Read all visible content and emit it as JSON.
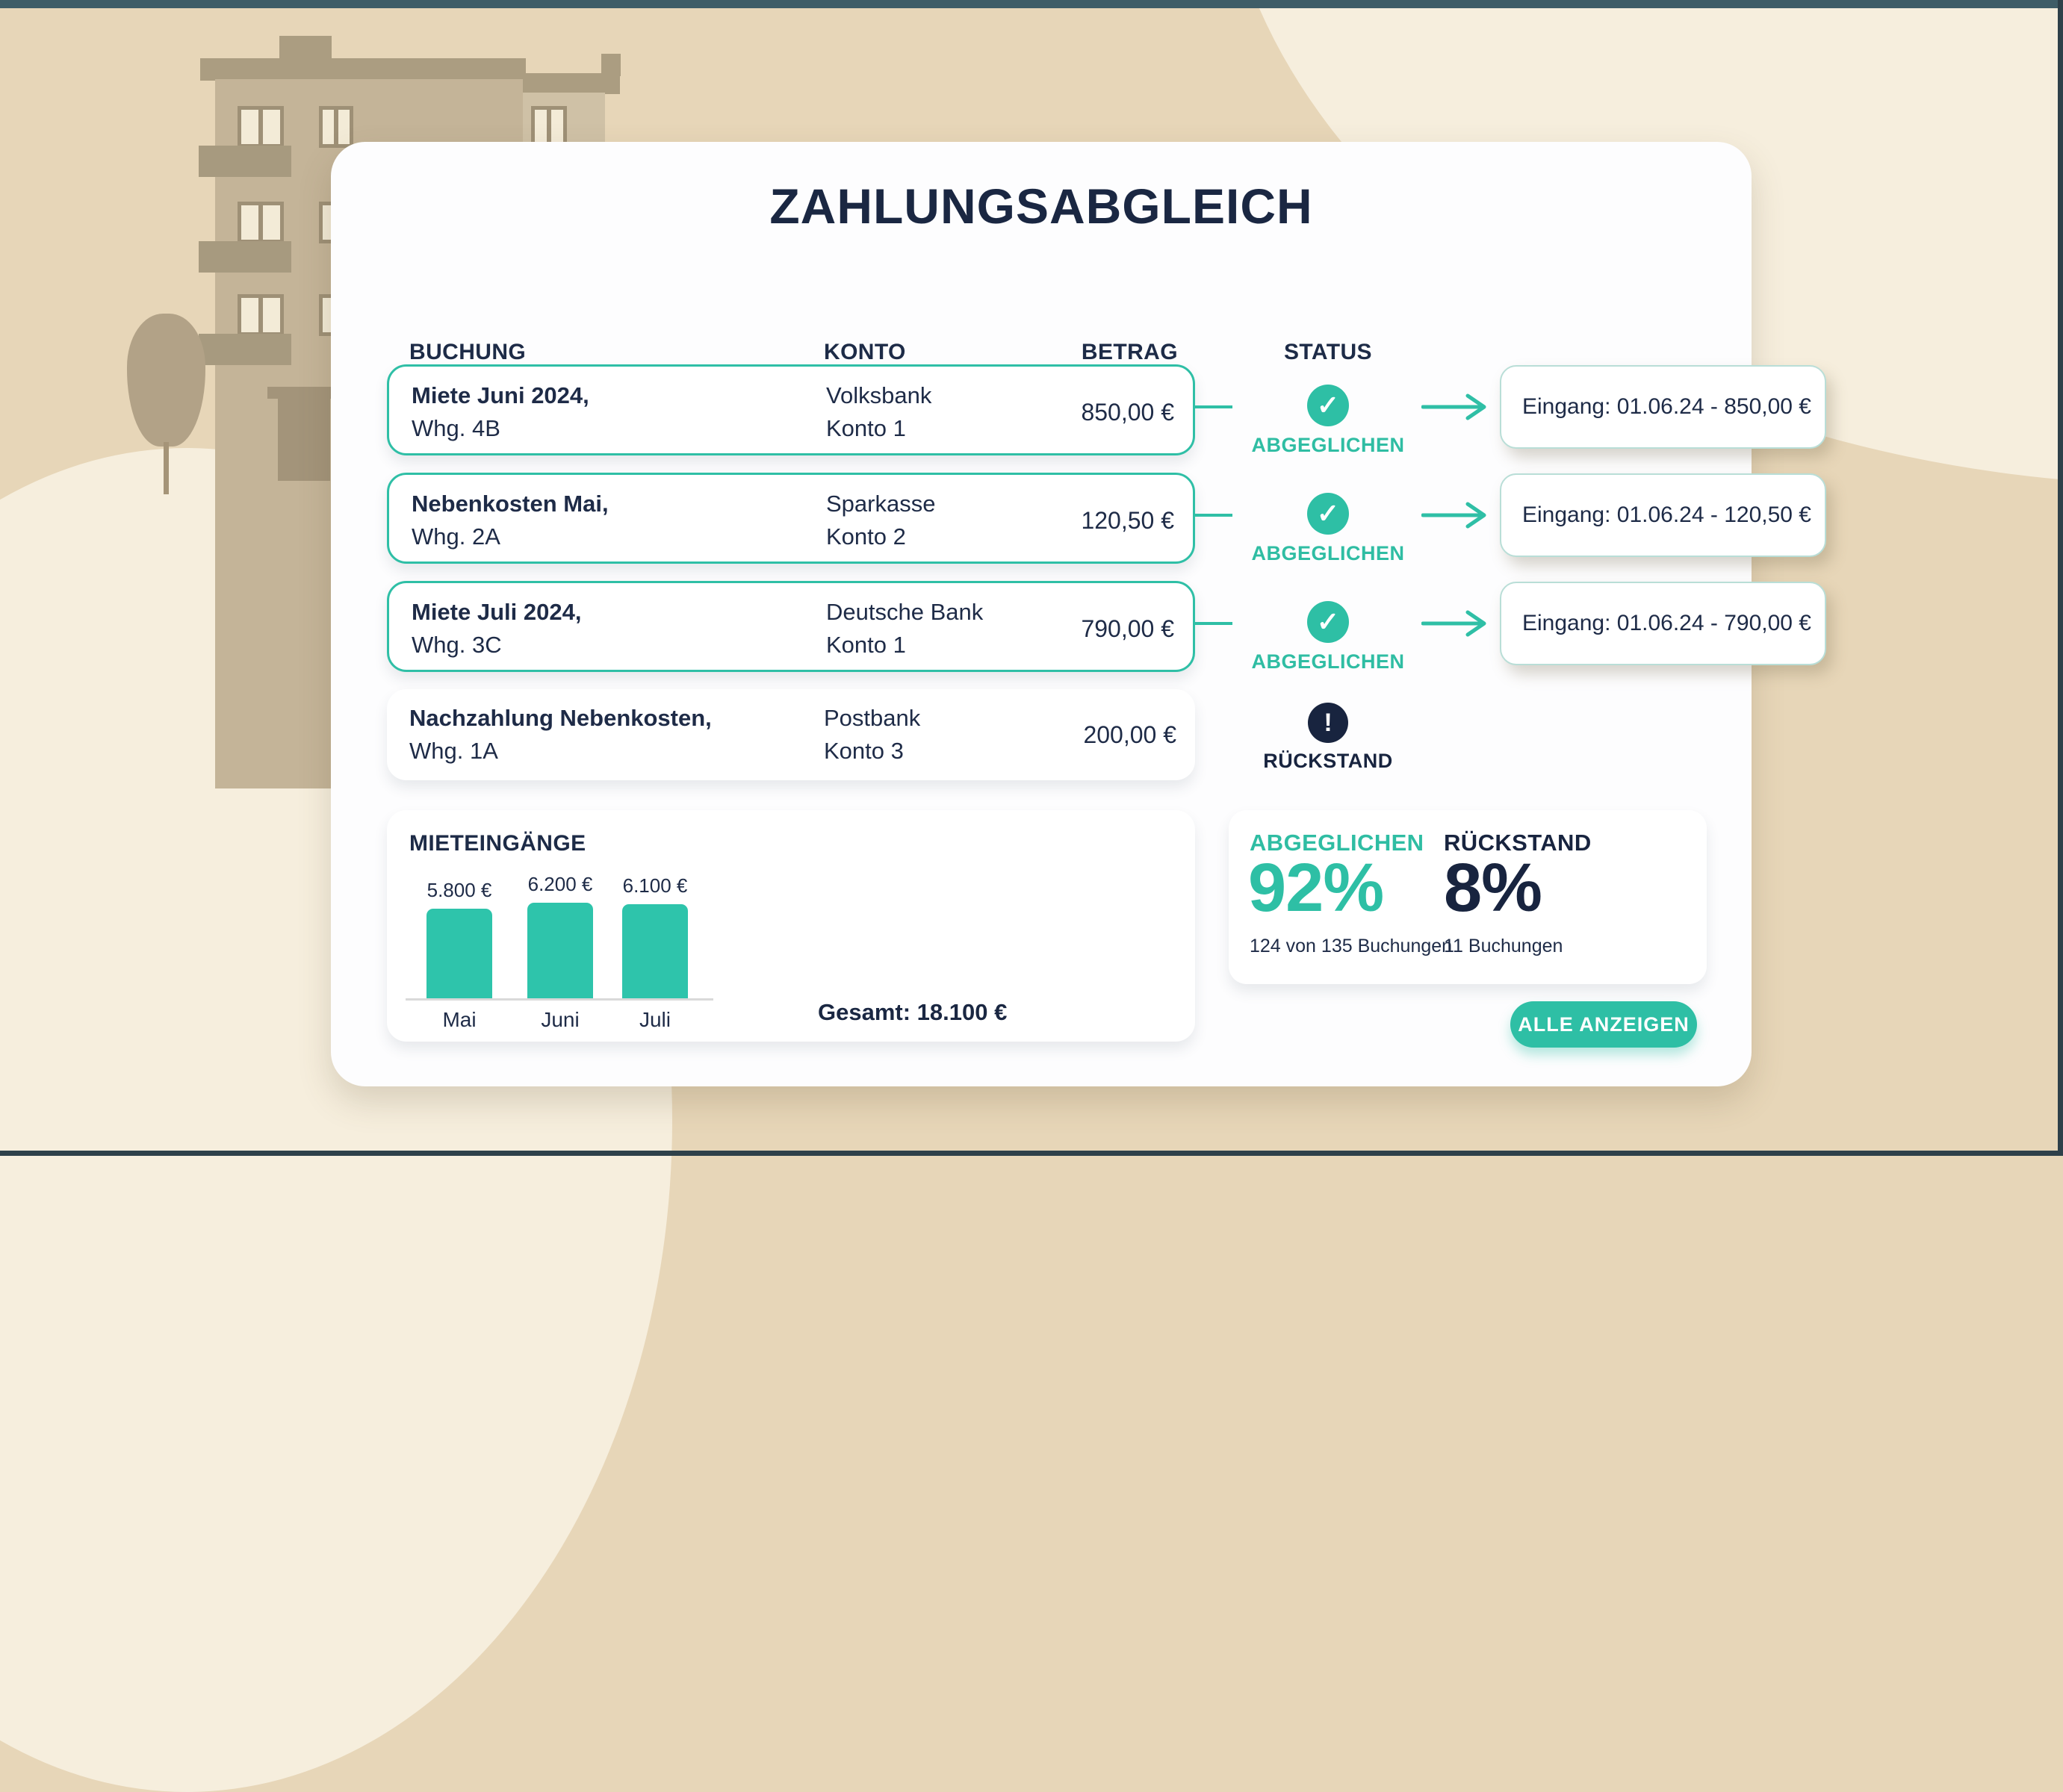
{
  "header": {
    "title": "ZAHLUNGSABGLEICH"
  },
  "table": {
    "headers": {
      "buchung": "BUCHUNG",
      "konto": "KONTO",
      "betrag": "BETRAG",
      "status": "STATUS"
    },
    "rows": [
      {
        "buchung_bold": "Miete Juni 2024,",
        "buchung_sub": "Whg. 4B",
        "konto_line1": "Volksbank",
        "konto_line2": "Konto 1",
        "betrag": "850,00 €",
        "status": "ABGEGLICHEN",
        "eingang": "Eingang: 01.06.24 - 850,00 €"
      },
      {
        "buchung_bold": "Nebenkosten Mai,",
        "buchung_sub": "Whg. 2A",
        "konto_line1": "Sparkasse",
        "konto_line2": "Konto 2",
        "betrag": "120,50 €",
        "status": "ABGEGLICHEN",
        "eingang": "Eingang: 01.06.24 - 120,50 €"
      },
      {
        "buchung_bold": "Miete Juli 2024,",
        "buchung_sub": "Whg. 3C",
        "konto_line1": "Deutsche Bank",
        "konto_line2": "Konto 1",
        "betrag": "790,00 €",
        "status": "ABGEGLICHEN",
        "eingang": "Eingang: 01.06.24 - 790,00 €"
      },
      {
        "buchung_bold": "Nachzahlung Nebenkosten,",
        "buchung_sub": "Whg. 1A",
        "konto_line1": "Postbank",
        "konto_line2": "Konto 3",
        "betrag": "200,00 €",
        "status": "RÜCKSTAND",
        "eingang": null
      }
    ]
  },
  "chart_data": {
    "type": "bar",
    "title": "MIETEINGÄNGE",
    "categories": [
      "Mai",
      "Juni",
      "Juli"
    ],
    "values": [
      5800,
      6200,
      6100
    ],
    "value_labels": [
      "5.800 €",
      "6.200 €",
      "6.100 €"
    ],
    "total_label": "Gesamt: 18.100 €",
    "xlabel": "",
    "ylabel": "",
    "grid": false,
    "legend": "none"
  },
  "summary": {
    "matched": {
      "label": "ABGEGLICHEN",
      "percent": "92%",
      "detail": "124 von 135 Buchungen"
    },
    "overdue": {
      "label": "RÜCKSTAND",
      "percent": "8%",
      "detail": "11 Buchungen"
    }
  },
  "actions": {
    "show_all": "ALLE ANZEIGEN"
  },
  "icons": {
    "matched": "✓",
    "overdue": "!"
  },
  "colors": {
    "accent_teal": "#2ebfa5",
    "navy": "#1a2742",
    "status_matched": "#2ebfa5",
    "status_overdue": "#18243f",
    "background_beige": "#e7d6b8",
    "background_cream": "#f6eedd",
    "topbar": "#3f5d67"
  }
}
